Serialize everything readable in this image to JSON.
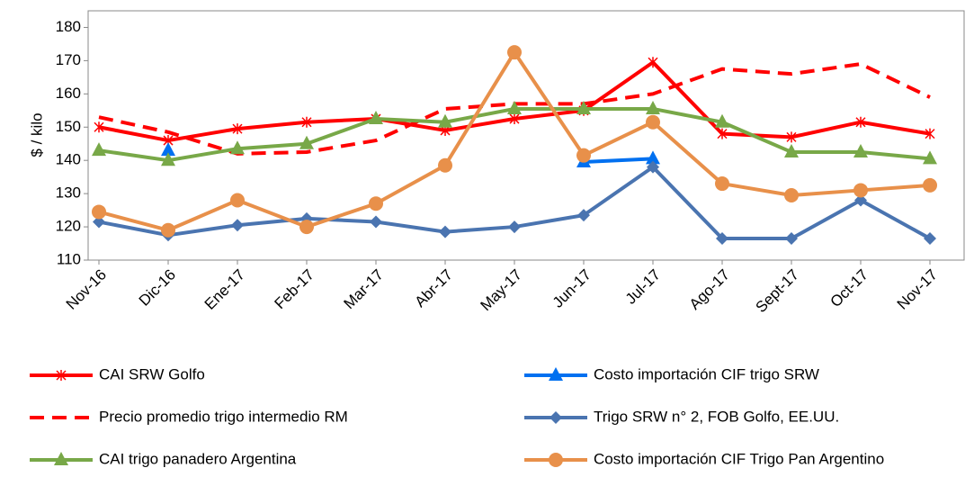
{
  "chart_data": {
    "type": "line",
    "y_label": "$ / kilo",
    "categories": [
      "Nov-16",
      "Dic-16",
      "Ene-17",
      "Feb-17",
      "Mar-17",
      "Abr-17",
      "May-17",
      "Jun-17",
      "Jul-17",
      "Ago-17",
      "Sept-17",
      "Oct-17",
      "Nov-17"
    ],
    "ylim": [
      110,
      185
    ],
    "yticks": [
      110,
      120,
      130,
      140,
      150,
      160,
      170,
      180
    ],
    "series": [
      {
        "name": "CAI SRW Golfo",
        "color": "#ff0000",
        "marker": "asterisk",
        "values": [
          150,
          146,
          149.5,
          151.5,
          152.5,
          149,
          152.5,
          155,
          169.5,
          148,
          147,
          151.5,
          148
        ]
      },
      {
        "name": "Costo importación CIF trigo SRW",
        "color": "#0070f0",
        "marker": "triangle",
        "values": [
          null,
          143,
          null,
          null,
          null,
          null,
          null,
          139.5,
          140.5,
          null,
          null,
          null,
          null
        ]
      },
      {
        "name": "Precio promedio trigo intermedio RM",
        "color": "#ff0000",
        "dashed": true,
        "values": [
          153,
          148.5,
          142,
          142.5,
          146,
          155.5,
          157,
          157,
          160,
          167.5,
          166,
          169,
          159
        ]
      },
      {
        "name": "Trigo SRW n° 2, FOB Golfo, EE.UU.",
        "color": "#4a74b0",
        "marker": "diamond",
        "values": [
          121.5,
          117.5,
          120.5,
          122.5,
          121.5,
          118.5,
          120,
          123.5,
          138,
          116.5,
          116.5,
          128,
          116.5
        ]
      },
      {
        "name": "CAI trigo panadero Argentina",
        "color": "#78a848",
        "marker": "triangle",
        "values": [
          143,
          140,
          143.5,
          145,
          152.5,
          151.5,
          155.5,
          155.5,
          155.5,
          151.5,
          142.5,
          142.5,
          140.5
        ]
      },
      {
        "name": "Costo importación CIF Trigo Pan Argentino",
        "color": "#e8904a",
        "marker": "circle",
        "values": [
          124.5,
          119,
          128,
          120,
          127,
          138.5,
          172.5,
          141.5,
          151.5,
          133,
          129.5,
          131,
          132.5
        ]
      }
    ]
  }
}
